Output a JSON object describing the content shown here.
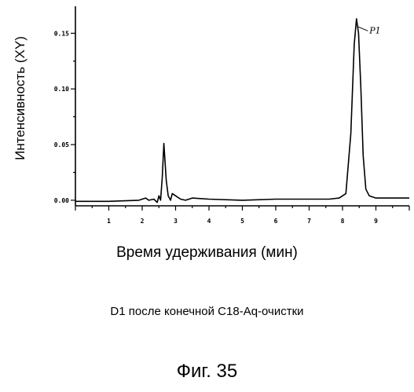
{
  "chart_data": {
    "type": "line",
    "xlabel": "Время удерживания (мин)",
    "ylabel": "Интенсивность (XY)",
    "subtitle": "D1 после конечной С18-Aq-очистки",
    "figure_label": "Фиг. 35",
    "xlim": [
      0,
      10
    ],
    "ylim": [
      -0.005,
      0.17
    ],
    "x_ticks": [
      {
        "value": 1,
        "label": "1"
      },
      {
        "value": 2,
        "label": "2"
      },
      {
        "value": 3,
        "label": "3"
      },
      {
        "value": 4,
        "label": "4"
      },
      {
        "value": 5,
        "label": "5"
      },
      {
        "value": 6,
        "label": "6"
      },
      {
        "value": 7,
        "label": "7"
      },
      {
        "value": 8,
        "label": "8"
      },
      {
        "value": 9,
        "label": "9"
      }
    ],
    "y_ticks": [
      {
        "value": 0.0,
        "label": "0.00"
      },
      {
        "value": 0.05,
        "label": "0.05"
      },
      {
        "value": 0.1,
        "label": "0.10"
      },
      {
        "value": 0.15,
        "label": "0.15"
      }
    ],
    "annotations": [
      {
        "text": "P1",
        "x": 8.9,
        "y": 0.15
      }
    ],
    "series": [
      {
        "color": "#000000",
        "x": [
          0.0,
          1.0,
          1.9,
          2.1,
          2.2,
          2.35,
          2.45,
          2.5,
          2.55,
          2.6,
          2.65,
          2.72,
          2.78,
          2.85,
          2.9,
          2.95,
          3.05,
          3.15,
          3.3,
          3.5,
          4.0,
          5.0,
          6.0,
          7.0,
          7.6,
          7.9,
          8.1,
          8.25,
          8.35,
          8.42,
          8.48,
          8.55,
          8.62,
          8.7,
          8.8,
          9.0,
          9.3,
          9.6,
          10.0
        ],
        "y": [
          -0.001,
          -0.001,
          0.0,
          0.002,
          0.0,
          0.001,
          -0.002,
          0.004,
          0.0,
          0.02,
          0.051,
          0.018,
          0.004,
          0.0,
          0.006,
          0.005,
          0.003,
          0.001,
          0.0,
          0.002,
          0.001,
          0.0,
          0.001,
          0.001,
          0.001,
          0.002,
          0.006,
          0.06,
          0.14,
          0.163,
          0.15,
          0.1,
          0.04,
          0.01,
          0.004,
          0.002,
          0.002,
          0.002,
          0.002
        ]
      }
    ]
  }
}
